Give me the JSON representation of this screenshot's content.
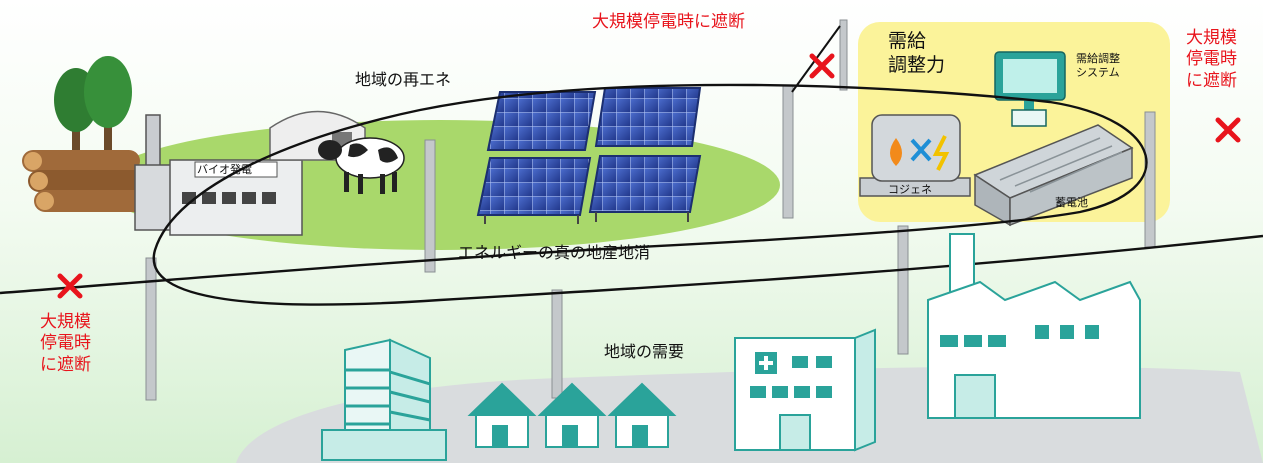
{
  "labels": {
    "cut_top": "大規模停電時に遮断",
    "cut_right": "大規模\n停電時\nに遮断",
    "cut_left": "大規模\n停電時\nに遮断",
    "local_renewables": "地域の再エネ",
    "supply_demand": "需給\n調整力",
    "control_system": "需給調整\nシステム",
    "biomass_plant": "バイオ発電",
    "cogeneration": "コジェネ",
    "storage_battery": "蓄電池",
    "local_production": "エネルギーの真の地産地消",
    "local_demand": "地域の需要"
  },
  "colors": {
    "accent_red": "#e8141c",
    "microgrid_highlight": "#fbf39a",
    "ground_green": "#a9d86b",
    "building_teal": "#2aa39a",
    "solar_blue": "#2c4aa8"
  }
}
